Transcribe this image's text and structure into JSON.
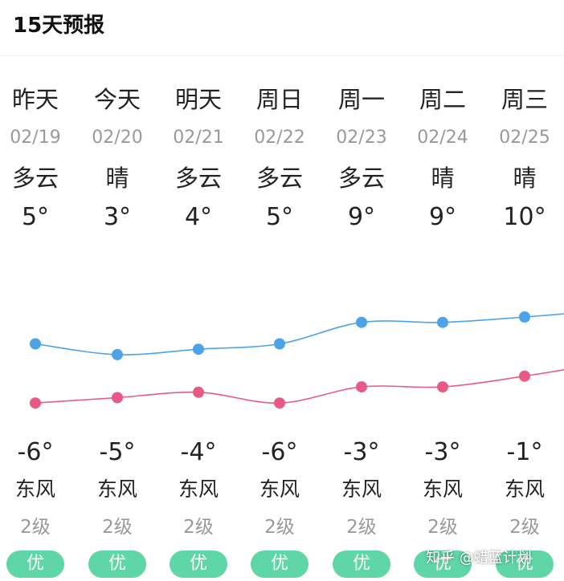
{
  "header": {
    "title": "15天预报"
  },
  "colors": {
    "high_line": "#4da3e8",
    "low_line": "#e85a86",
    "aqi_badge": "#5fd6a6"
  },
  "days": [
    {
      "day": "昨天",
      "date": "02/19",
      "cond": "多云",
      "high": "5°",
      "low": "-6°",
      "wind": "东风",
      "level": "2级",
      "aqi": "优",
      "high_val": 5,
      "low_val": -6
    },
    {
      "day": "今天",
      "date": "02/20",
      "cond": "晴",
      "high": "3°",
      "low": "-5°",
      "wind": "东风",
      "level": "2级",
      "aqi": "优",
      "high_val": 3,
      "low_val": -5
    },
    {
      "day": "明天",
      "date": "02/21",
      "cond": "多云",
      "high": "4°",
      "low": "-4°",
      "wind": "东风",
      "level": "2级",
      "aqi": "优",
      "high_val": 4,
      "low_val": -4
    },
    {
      "day": "周日",
      "date": "02/22",
      "cond": "多云",
      "high": "5°",
      "low": "-6°",
      "wind": "东风",
      "level": "2级",
      "aqi": "优",
      "high_val": 5,
      "low_val": -6
    },
    {
      "day": "周一",
      "date": "02/23",
      "cond": "多云",
      "high": "9°",
      "low": "-3°",
      "wind": "东风",
      "level": "2级",
      "aqi": "优",
      "high_val": 9,
      "low_val": -3
    },
    {
      "day": "周二",
      "date": "02/24",
      "cond": "晴",
      "high": "9°",
      "low": "-3°",
      "wind": "东风",
      "level": "2级",
      "aqi": "优",
      "high_val": 9,
      "low_val": -3
    },
    {
      "day": "周三",
      "date": "02/25",
      "cond": "晴",
      "high": "10°",
      "low": "-1°",
      "wind": "东风",
      "level": "2级",
      "aqi": "优",
      "high_val": 10,
      "low_val": -1
    }
  ],
  "watermark": {
    "text": "知乎 @蜡蓝计划"
  }
}
